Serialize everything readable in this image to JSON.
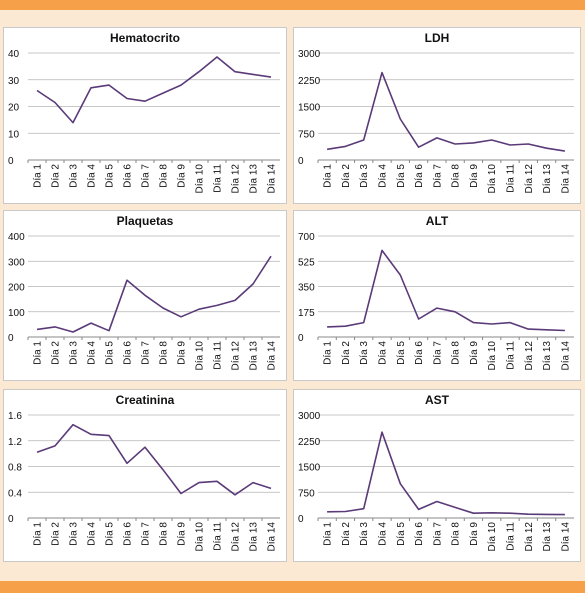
{
  "colors": {
    "accent_bar": "#f7a04a",
    "background": "#fbe9d3",
    "line": "#5a3a78",
    "grid": "#b5b5b5"
  },
  "chart_data": [
    {
      "type": "line",
      "title": "Hematocrito",
      "categories": [
        "Día 1",
        "Día 2",
        "Día 3",
        "Día 4",
        "Día 5",
        "Día 6",
        "Día 7",
        "Día 8",
        "Día 9",
        "Día 10",
        "Día 11",
        "Día 12",
        "Día 13",
        "Día 14"
      ],
      "series": [
        {
          "values": [
            26,
            21.5,
            14,
            27,
            28,
            23,
            22,
            25,
            28,
            33,
            38.5,
            33,
            32,
            31
          ]
        }
      ],
      "ylim": [
        0,
        40
      ],
      "yticks": [
        "0",
        "10",
        "20",
        "30",
        "40"
      ],
      "grid": true
    },
    {
      "type": "line",
      "title": "LDH",
      "categories": [
        "Día 1",
        "Día 2",
        "Día 3",
        "Día 4",
        "Día 5",
        "Día 6",
        "Día 7",
        "Día 8",
        "Día 9",
        "Día 10",
        "Día 11",
        "Día 12",
        "Día 13",
        "Día 14"
      ],
      "series": [
        {
          "values": [
            300,
            380,
            560,
            2450,
            1150,
            360,
            620,
            450,
            480,
            560,
            420,
            450,
            330,
            250
          ]
        }
      ],
      "ylim": [
        0,
        3000
      ],
      "yticks": [
        "0",
        "750",
        "1500",
        "2250",
        "3000"
      ],
      "grid": true
    },
    {
      "type": "line",
      "title": "Plaquetas",
      "categories": [
        "Día 1",
        "Día 2",
        "Día 3",
        "Día 4",
        "Día 5",
        "Día 6",
        "Día 7",
        "Día 8",
        "Día 9",
        "Día 10",
        "Día 11",
        "Día 12",
        "Día 13",
        "Día 14"
      ],
      "series": [
        {
          "values": [
            30,
            40,
            20,
            55,
            25,
            225,
            165,
            115,
            80,
            110,
            125,
            145,
            210,
            320
          ]
        }
      ],
      "ylim": [
        0,
        400
      ],
      "yticks": [
        "0",
        "100",
        "200",
        "300",
        "400"
      ],
      "grid": true
    },
    {
      "type": "line",
      "title": "ALT",
      "categories": [
        "Día 1",
        "Día 2",
        "Día 3",
        "Día 4",
        "Día 5",
        "Día 6",
        "Día 7",
        "Día 8",
        "Día 9",
        "Día 10",
        "Día 11",
        "Día 12",
        "Día 13",
        "Día 14"
      ],
      "series": [
        {
          "values": [
            70,
            75,
            100,
            600,
            430,
            125,
            200,
            175,
            100,
            90,
            100,
            55,
            50,
            45
          ]
        }
      ],
      "ylim": [
        0,
        700
      ],
      "yticks": [
        "0",
        "175",
        "350",
        "525",
        "700"
      ],
      "grid": true
    },
    {
      "type": "line",
      "title": "Creatinina",
      "categories": [
        "Día 1",
        "Día 2",
        "Día 3",
        "Día 4",
        "Día 5",
        "Día 6",
        "Día 7",
        "Día 8",
        "Día 9",
        "Día 10",
        "Día 11",
        "Día 12",
        "Día 13",
        "Día 14"
      ],
      "series": [
        {
          "values": [
            1.02,
            1.12,
            1.45,
            1.3,
            1.28,
            0.85,
            1.1,
            0.75,
            0.38,
            0.55,
            0.57,
            0.36,
            0.55,
            0.46
          ]
        }
      ],
      "ylim": [
        0,
        1.6
      ],
      "yticks": [
        "0",
        "0.4",
        "0.8",
        "1.2",
        "1.6"
      ],
      "grid": true
    },
    {
      "type": "line",
      "title": "AST",
      "categories": [
        "Día 1",
        "Día 2",
        "Día 3",
        "Día 4",
        "Día 5",
        "Día 6",
        "Día 7",
        "Día 8",
        "Día 9",
        "Día 10",
        "Día 11",
        "Día 12",
        "Día 13",
        "Día 14"
      ],
      "series": [
        {
          "values": [
            180,
            190,
            270,
            2500,
            1000,
            250,
            480,
            310,
            140,
            150,
            140,
            110,
            105,
            100
          ]
        }
      ],
      "ylim": [
        0,
        3000
      ],
      "yticks": [
        "0",
        "750",
        "1500",
        "2250",
        "3000"
      ],
      "grid": true
    }
  ]
}
